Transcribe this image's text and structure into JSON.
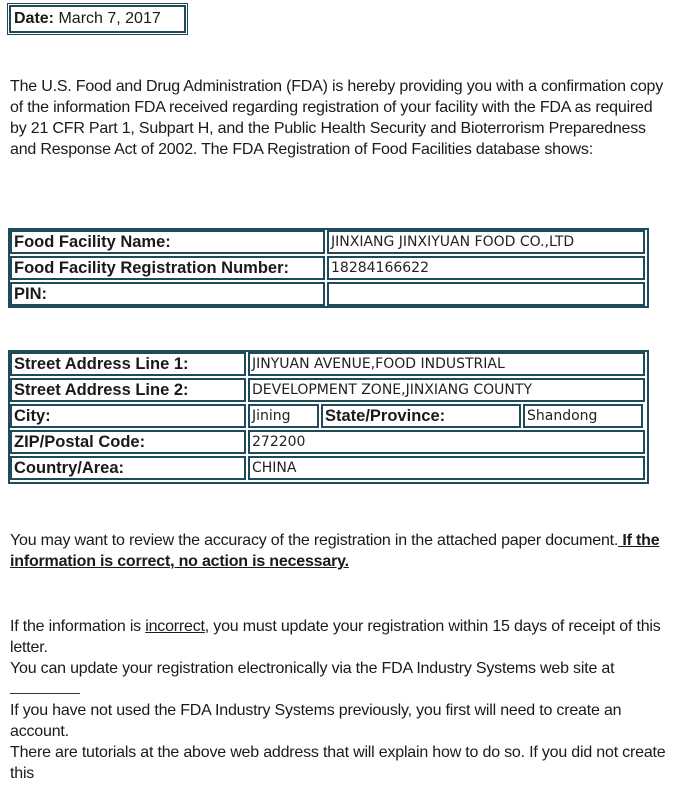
{
  "date": {
    "label": "Date:",
    "value": "March 7, 2017"
  },
  "intro": "The U.S. Food and Drug Administration (FDA) is hereby providing you with a confirmation copy of the information FDA received regarding registration of your facility with the FDA as required by 21 CFR Part 1, Subpart H, and the Public Health Security and Bioterrorism Preparedness and Response Act of 2002. The FDA Registration of Food Facilities database shows:",
  "facility": {
    "name_label": "Food Facility Name:",
    "name_value": "JINXIANG JINXIYUAN FOOD CO.,LTD",
    "reg_label": "Food Facility Registration Number:",
    "reg_value": "18284166622",
    "pin_label": "PIN:",
    "pin_value": ""
  },
  "address": {
    "line1_label": "Street Address Line 1:",
    "line1_value": "JINYUAN AVENUE,FOOD INDUSTRIAL",
    "line2_label": "Street Address Line 2:",
    "line2_value": "DEVELOPMENT ZONE,JINXIANG COUNTY",
    "city_label": "City:",
    "city_value": "Jining",
    "state_label": "State/Province:",
    "state_value": "Shandong",
    "zip_label": "ZIP/Postal Code:",
    "zip_value": "272200",
    "country_label": "Country/Area:",
    "country_value": "CHINA"
  },
  "review": {
    "text": "You may want to review the accuracy of the registration in the attached paper document.",
    "bold1": " If the",
    "bold2": "information is correct, no action is necessary."
  },
  "incorrect": {
    "pre": "If the information is ",
    "word": "incorrect",
    "post": ", you must update your registration within 15 days of receipt of this letter.",
    "update_line": "You can update your registration electronically via the FDA Industry Systems web site at",
    "account_line": "If you have not used the FDA Industry Systems previously, you first will need to create an account.",
    "tutorials_line": "There are tutorials at the above web address that will explain how to do so. If you did not create this"
  }
}
